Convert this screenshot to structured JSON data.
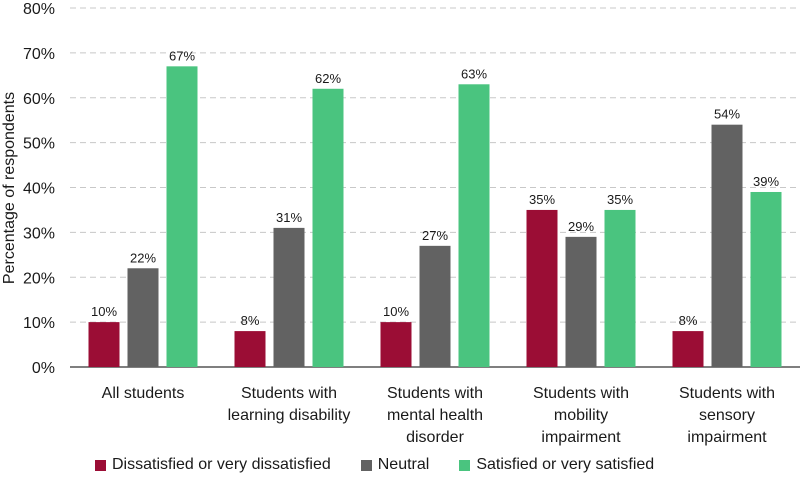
{
  "chart_data": {
    "type": "bar",
    "ylabel": "Percentage of respondents",
    "ylim": [
      0,
      80
    ],
    "yticks": [
      "0%",
      "10%",
      "20%",
      "30%",
      "40%",
      "50%",
      "60%",
      "70%",
      "80%"
    ],
    "grid": true,
    "legend_position": "bottom",
    "categories": [
      [
        "All students"
      ],
      [
        "Students with",
        "learning disability"
      ],
      [
        "Students with",
        "mental health",
        "disorder"
      ],
      [
        "Students with",
        "mobility",
        "impairment"
      ],
      [
        "Students with",
        "sensory",
        "impairment"
      ]
    ],
    "series": [
      {
        "name": "Dissatisfied or very dissatisfied",
        "color": "#9b0d35",
        "values": [
          10,
          8,
          10,
          35,
          8
        ],
        "labels": [
          "10%",
          "8%",
          "10%",
          "35%",
          "8%"
        ]
      },
      {
        "name": "Neutral",
        "color": "#626262",
        "values": [
          22,
          31,
          27,
          29,
          54
        ],
        "labels": [
          "22%",
          "31%",
          "27%",
          "29%",
          "54%"
        ]
      },
      {
        "name": "Satisfied or very satisfied",
        "color": "#4ac47f",
        "values": [
          67,
          62,
          63,
          35,
          39
        ],
        "labels": [
          "67%",
          "62%",
          "63%",
          "35%",
          "39%"
        ]
      }
    ]
  }
}
